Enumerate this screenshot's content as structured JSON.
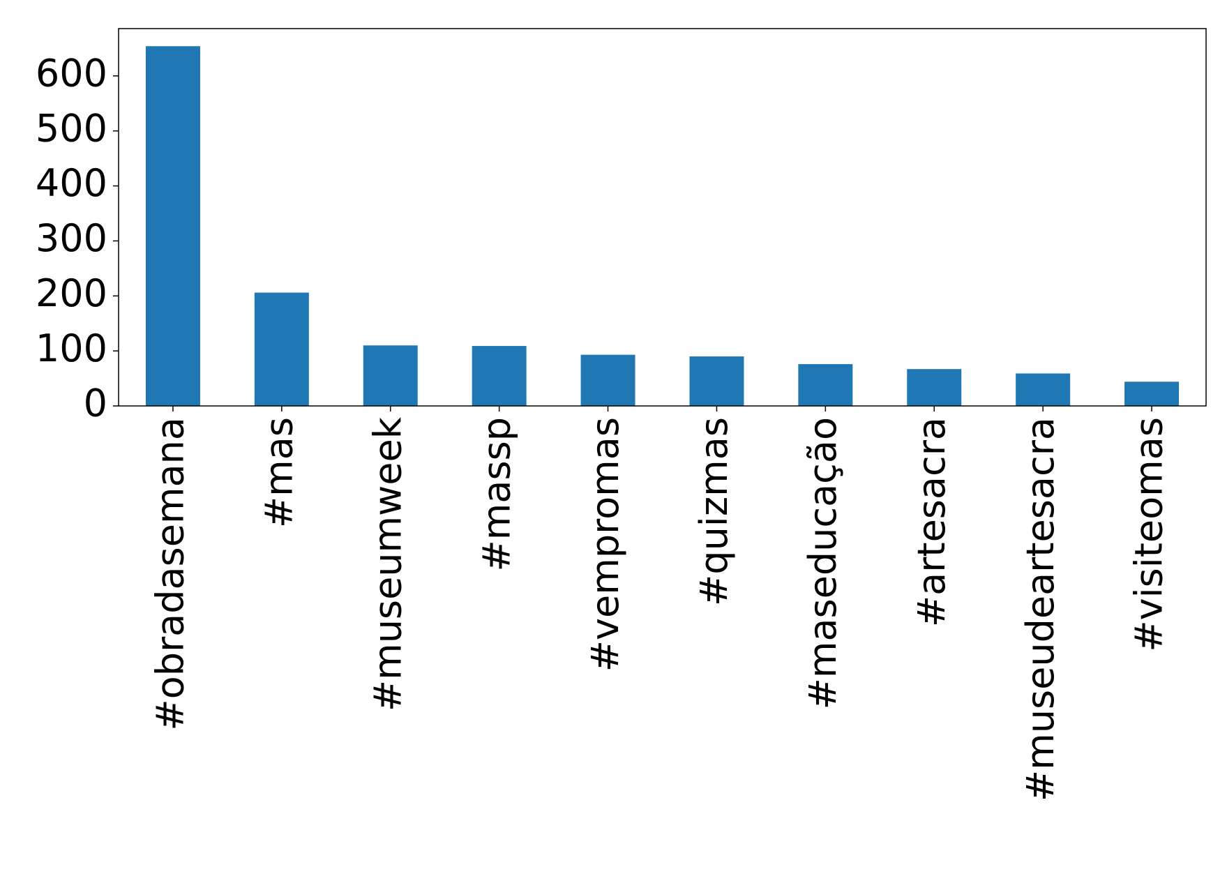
{
  "chart_data": {
    "type": "bar",
    "categories": [
      "#obradasemana",
      "#mas",
      "#museumweek",
      "#massp",
      "#vempromas",
      "#quizmas",
      "#maseducação",
      "#artesacra",
      "#museudeartesacra",
      "#visiteomas"
    ],
    "values": [
      654,
      206,
      110,
      109,
      93,
      90,
      76,
      67,
      59,
      44
    ],
    "color": "#1f77b4",
    "ylim": [
      0,
      686
    ],
    "yticks": [
      0,
      100,
      200,
      300,
      400,
      500,
      600
    ],
    "grid": false
  }
}
